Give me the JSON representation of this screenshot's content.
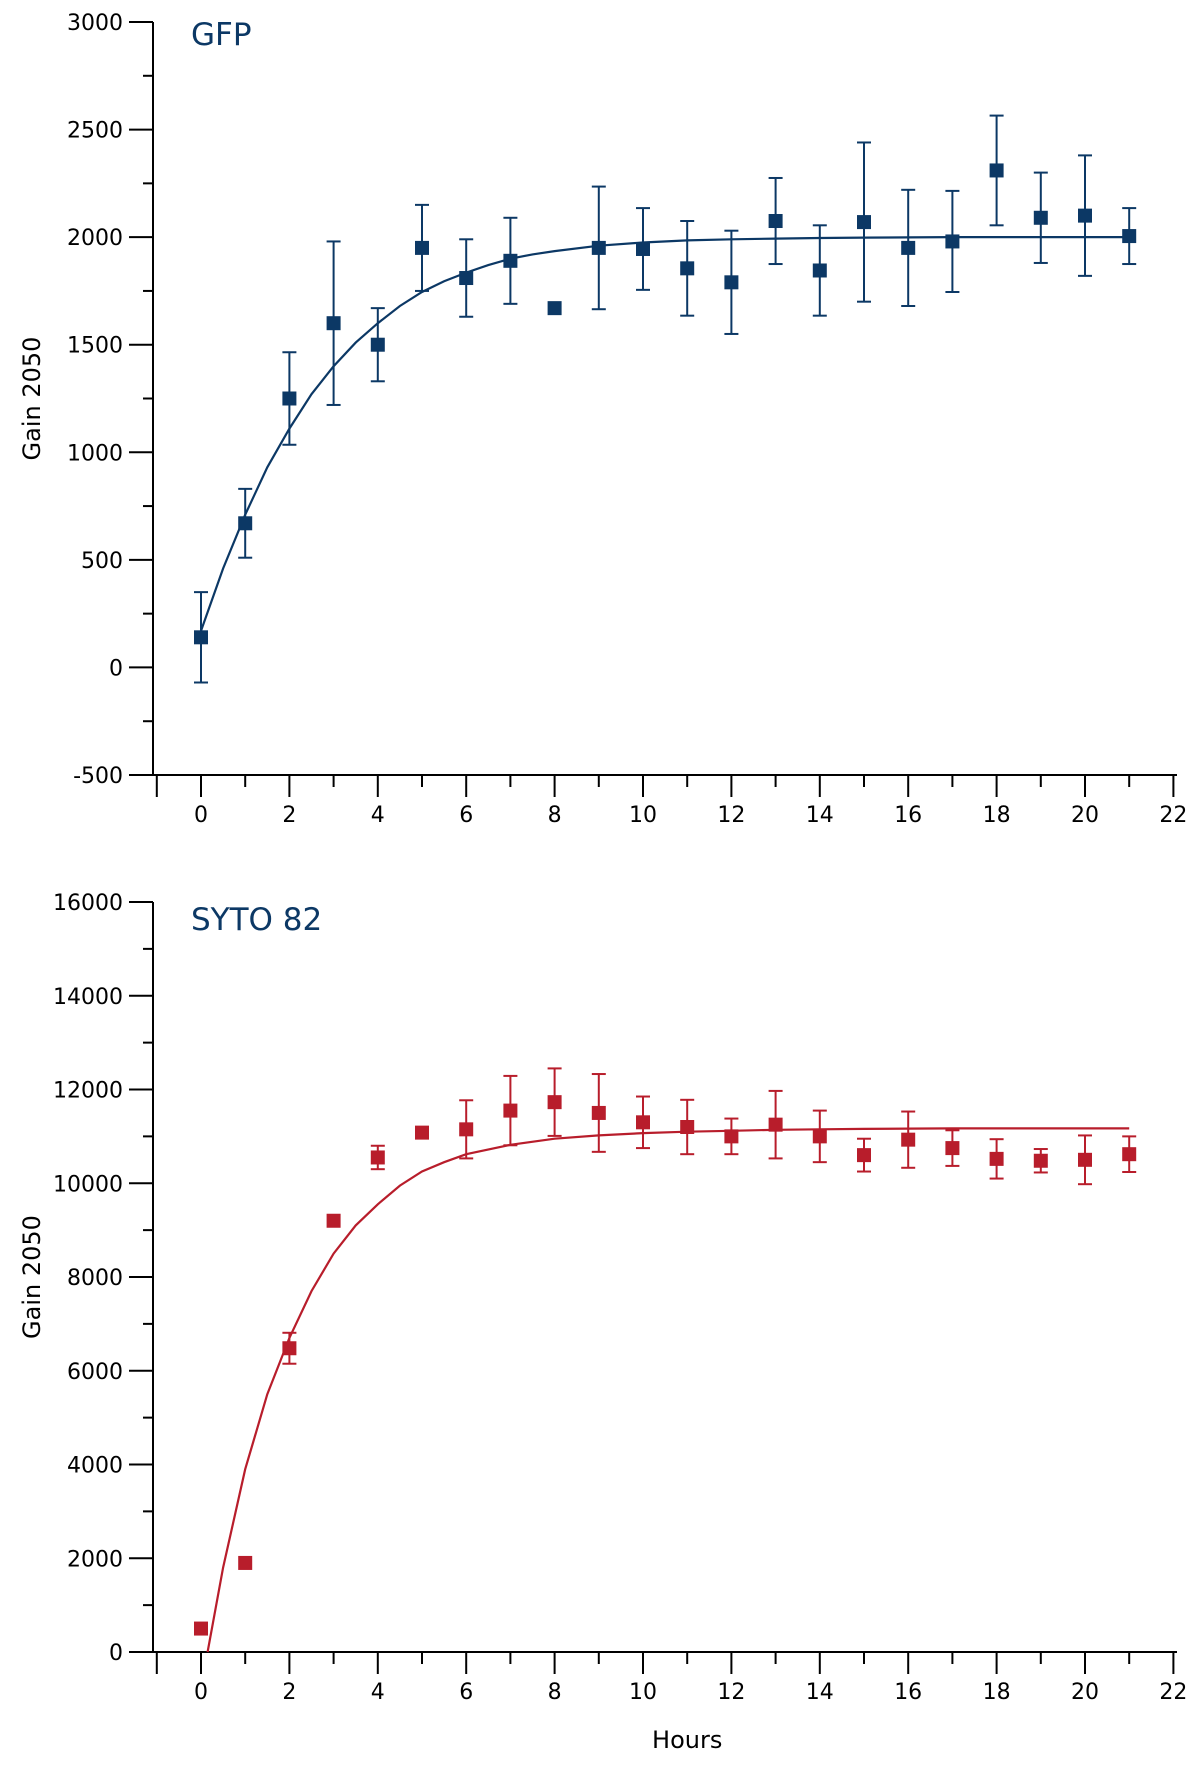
{
  "chart_data": [
    {
      "type": "scatter",
      "title": "GFP",
      "xlabel": "",
      "ylabel": "Gain 2050",
      "xlim": [
        -1,
        22
      ],
      "ylim": [
        -500,
        3000
      ],
      "xticks": [
        0,
        2,
        4,
        6,
        8,
        10,
        12,
        14,
        16,
        18,
        20,
        22
      ],
      "yticks": [
        -500,
        0,
        500,
        1000,
        1500,
        2000,
        2500,
        3000
      ],
      "color": "#0c3865",
      "grid": false,
      "legend": "none",
      "marker": "square",
      "series": [
        {
          "x": [
            0,
            1,
            2,
            3,
            4,
            5,
            6,
            7,
            8,
            9,
            10,
            11,
            12,
            13,
            14,
            15,
            16,
            17,
            18,
            19,
            20,
            21
          ],
          "y": [
            140,
            670,
            1250,
            1600,
            1500,
            1950,
            1810,
            1890,
            1670,
            1950,
            1945,
            1855,
            1790,
            2075,
            1845,
            2070,
            1950,
            1980,
            2310,
            2090,
            2100,
            2005
          ],
          "err": [
            210,
            160,
            215,
            380,
            170,
            200,
            180,
            200,
            0,
            285,
            190,
            220,
            240,
            200,
            210,
            370,
            270,
            235,
            255,
            210,
            280,
            130
          ]
        }
      ],
      "fit": {
        "x": [
          0,
          0.5,
          1,
          1.5,
          2,
          2.5,
          3,
          3.5,
          4,
          4.5,
          5,
          5.5,
          6,
          6.5,
          7,
          7.5,
          8,
          9,
          10,
          11,
          12,
          13,
          14,
          15,
          16,
          17,
          18,
          19,
          20,
          21
        ],
        "y": [
          170,
          460,
          710,
          930,
          1110,
          1270,
          1400,
          1510,
          1600,
          1680,
          1745,
          1795,
          1835,
          1870,
          1900,
          1920,
          1935,
          1960,
          1975,
          1985,
          1990,
          1993,
          1996,
          1998,
          1999,
          2000,
          2000,
          2000,
          2000,
          2000
        ]
      }
    },
    {
      "type": "scatter",
      "title": "SYTO 82",
      "xlabel": "Hours",
      "ylabel": "Gain 2050",
      "xlim": [
        -1,
        22
      ],
      "ylim": [
        0,
        16000
      ],
      "xticks": [
        0,
        2,
        4,
        6,
        8,
        10,
        12,
        14,
        16,
        18,
        20,
        22
      ],
      "yticks": [
        0,
        2000,
        4000,
        6000,
        8000,
        10000,
        12000,
        14000,
        16000
      ],
      "color": "#b81d2b",
      "grid": false,
      "legend": "none",
      "marker": "square",
      "series": [
        {
          "x": [
            0,
            1,
            2,
            3,
            4,
            5,
            6,
            7,
            8,
            9,
            10,
            11,
            12,
            13,
            14,
            15,
            16,
            17,
            18,
            19,
            20,
            21
          ],
          "y": [
            500,
            1900,
            6480,
            9200,
            10550,
            11080,
            11150,
            11550,
            11730,
            11500,
            11300,
            11200,
            11000,
            11250,
            11000,
            10600,
            10930,
            10750,
            10520,
            10480,
            10500,
            10620
          ],
          "err": [
            0,
            0,
            330,
            0,
            250,
            0,
            620,
            740,
            720,
            830,
            550,
            580,
            380,
            720,
            550,
            350,
            600,
            380,
            420,
            250,
            520,
            380
          ]
        }
      ],
      "fit": {
        "x": [
          0.15,
          0.5,
          1,
          1.5,
          2,
          2.5,
          3,
          3.5,
          4,
          4.5,
          5,
          5.5,
          6,
          7,
          8,
          9,
          10,
          11,
          12,
          13,
          14,
          15,
          16,
          17,
          18,
          19,
          20,
          21
        ],
        "y": [
          0,
          1800,
          3900,
          5500,
          6700,
          7700,
          8500,
          9100,
          9550,
          9950,
          10250,
          10450,
          10620,
          10820,
          10950,
          11020,
          11070,
          11100,
          11120,
          11140,
          11150,
          11160,
          11165,
          11170,
          11170,
          11170,
          11170,
          11170
        ]
      }
    }
  ]
}
